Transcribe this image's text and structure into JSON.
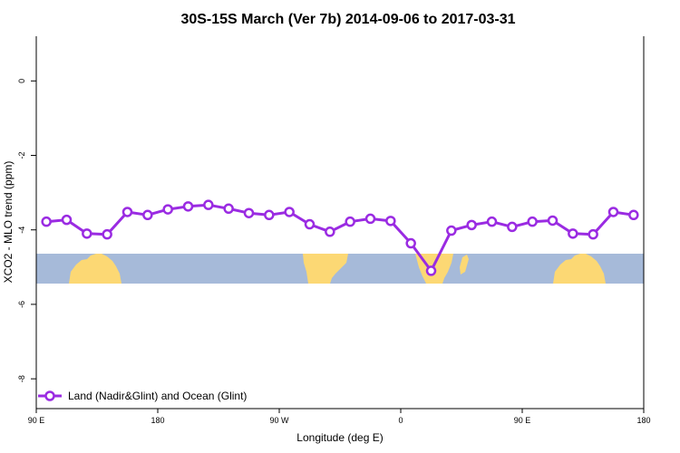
{
  "chart_data": {
    "type": "line",
    "title": "30S-15S March (Ver 7b)   2014-09-06 to 2017-03-31",
    "xlabel": "Longitude (deg E)",
    "ylabel": "XCO2 - MLO trend (ppm)",
    "x_tick_labels": [
      "90 E",
      "180",
      "90 W",
      "0",
      "90 E",
      "180"
    ],
    "x_ticks": [
      90,
      180,
      270,
      360,
      450,
      540
    ],
    "xlim": [
      90,
      540
    ],
    "y_ticks": [
      0,
      -2,
      -4,
      -6,
      -8
    ],
    "y_tick_labels": [
      "0",
      "-2",
      "-4",
      "-6",
      "-8"
    ],
    "ylim": [
      -8.8,
      1.2
    ],
    "grid": false,
    "legend_position": "bottom-left",
    "colors": {
      "series": "#9a2be2",
      "ocean": "#a6bad9",
      "land": "#fcd874"
    },
    "series": [
      {
        "name": "Land (Nadir&Glint) and Ocean (Glint)",
        "x": [
          97.5,
          112.5,
          127.5,
          142.5,
          157.5,
          172.5,
          187.5,
          202.5,
          217.5,
          232.5,
          247.5,
          262.5,
          277.5,
          292.5,
          307.5,
          322.5,
          337.5,
          352.5,
          367.5,
          382.5,
          397.5,
          412.5,
          427.5,
          442.5,
          457.5,
          472.5,
          487.5,
          502.5,
          517.5,
          532.5
        ],
        "values": [
          -3.78,
          -3.73,
          -4.1,
          -4.12,
          -3.52,
          -3.6,
          -3.45,
          -3.37,
          -3.33,
          -3.43,
          -3.55,
          -3.6,
          -3.52,
          -3.85,
          -4.05,
          -3.78,
          -3.7,
          -3.76,
          -4.36,
          -5.1,
          -4.02,
          -3.87,
          -3.78,
          -3.92,
          -3.78,
          -3.75,
          -4.1,
          -4.12,
          -3.52,
          -3.6
        ]
      }
    ]
  }
}
